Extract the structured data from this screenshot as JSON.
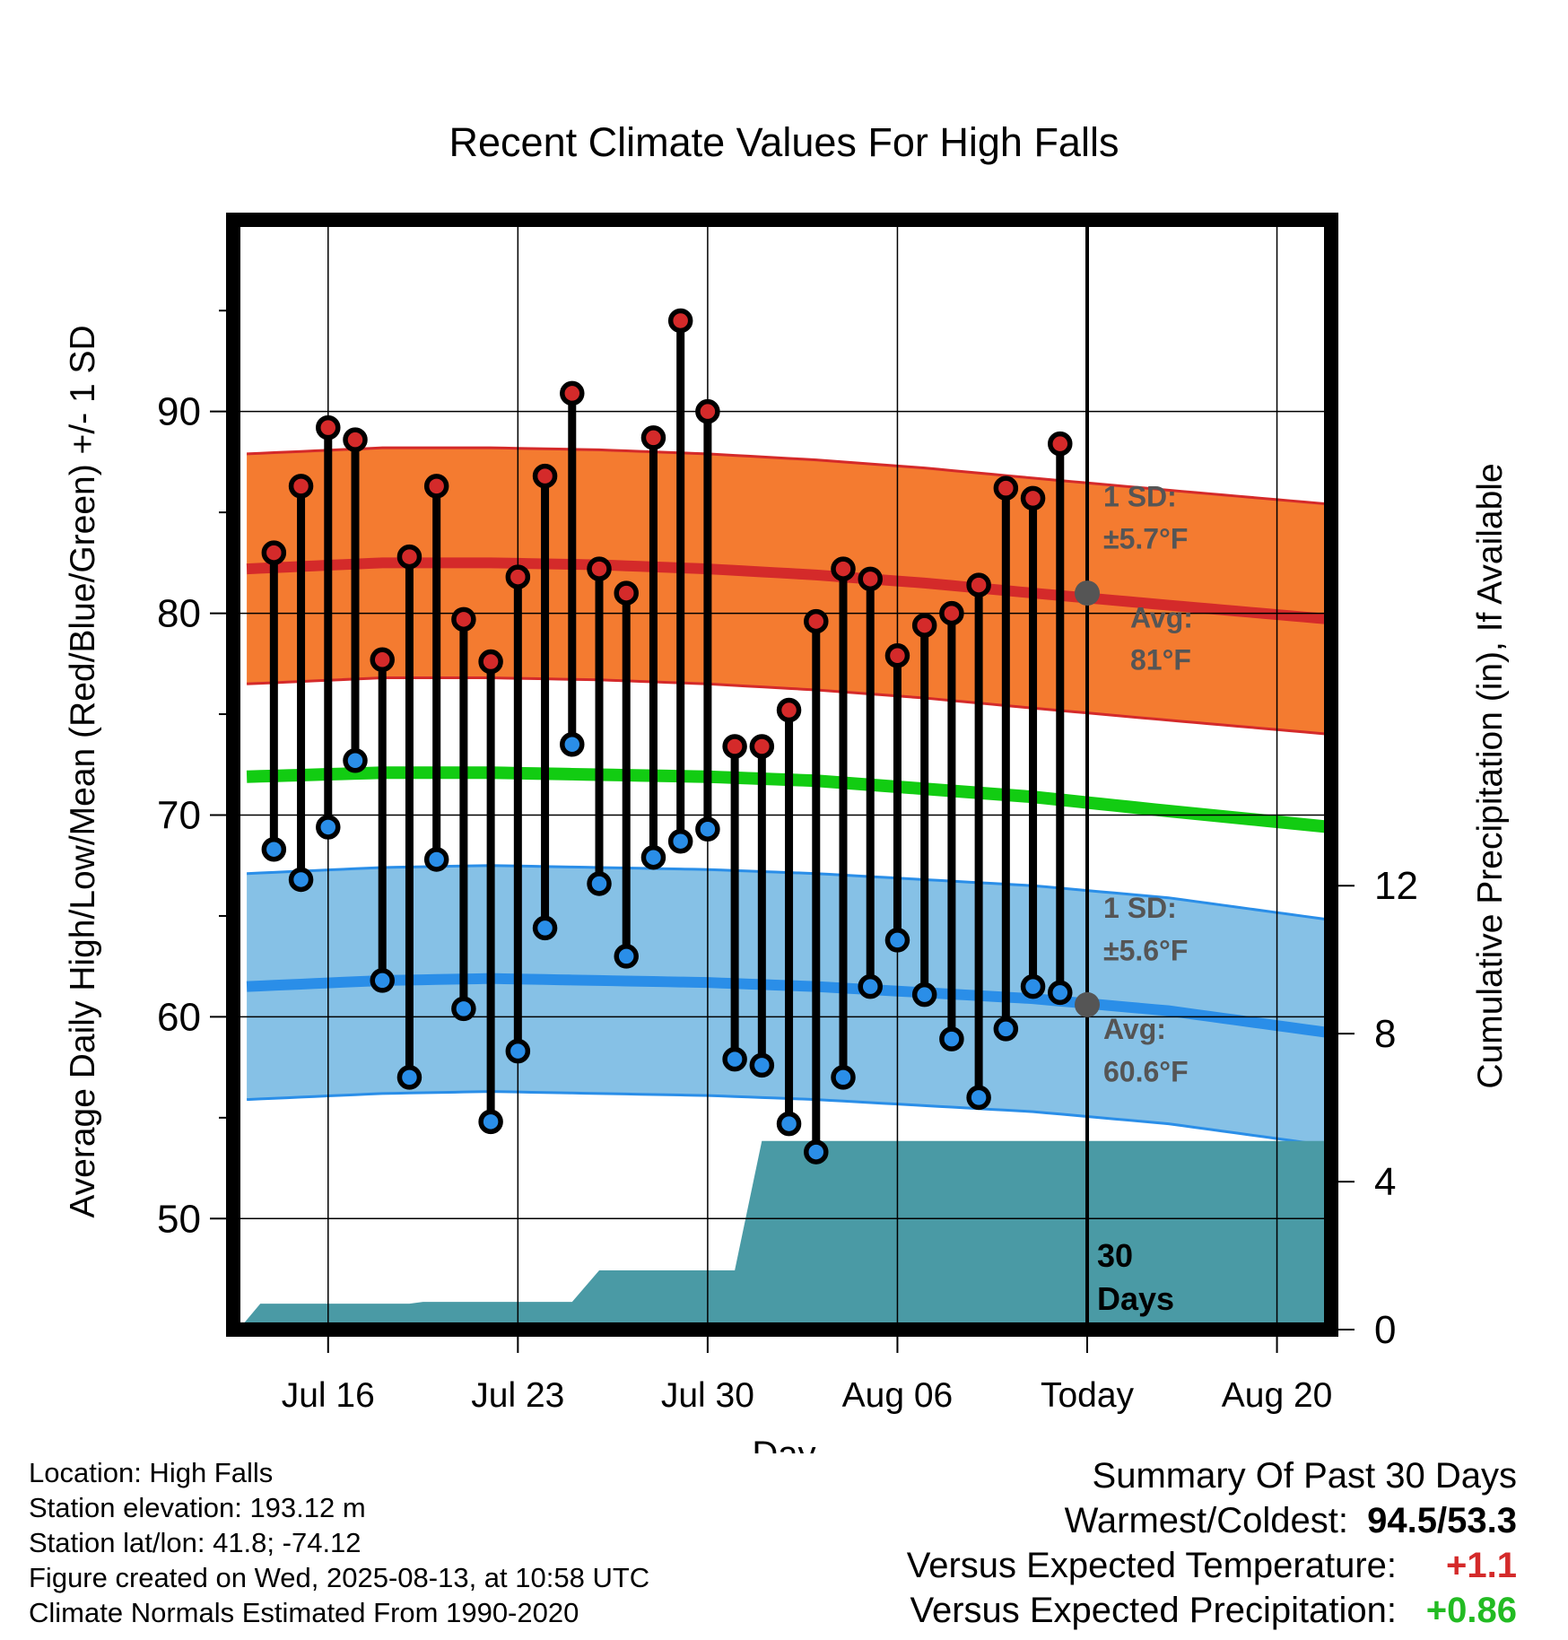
{
  "chart_data": {
    "type": "line",
    "title": "Recent Climate Values For High Falls",
    "xlabel": "Day",
    "ylabel_left": "Average Daily High/Low/Mean (Red/Blue/Green) +/- 1 SD",
    "ylabel_right": "Cumulative Precipitation (in), If Available",
    "x_ticks": [
      "Jul 16",
      "Jul 23",
      "Jul 30",
      "Aug 06",
      "Today",
      "Aug 20"
    ],
    "x_tick_days": [
      2,
      9,
      16,
      23,
      30,
      37
    ],
    "xlim_days": [
      -1.5,
      39
    ],
    "ylim_temp": [
      44.5,
      99.5
    ],
    "y_ticks_temp": [
      50,
      60,
      70,
      80,
      90
    ],
    "y_minor_step": 5,
    "ylim_precip": [
      0,
      30
    ],
    "y_ticks_precip": [
      0,
      4,
      8,
      12
    ],
    "grid": true,
    "today_day": 30,
    "days_label": "30",
    "days_label_2": "Days",
    "normals": {
      "high_avg": [
        82.2,
        82.5,
        82.5,
        82.4,
        82.2,
        81.9,
        81.5,
        81.0,
        80.4,
        79.7
      ],
      "high_sd": 5.7,
      "low_avg": [
        61.5,
        61.8,
        61.9,
        61.8,
        61.7,
        61.5,
        61.2,
        60.9,
        60.3,
        59.2
      ],
      "low_sd": 5.6,
      "mean_avg": [
        71.9,
        72.1,
        72.1,
        72.0,
        71.9,
        71.7,
        71.3,
        70.9,
        70.2,
        69.4
      ],
      "normal_days": [
        -1,
        4,
        8,
        12,
        16,
        20,
        24,
        28,
        33,
        39
      ]
    },
    "high_label": {
      "sd_title": "1 SD:",
      "sd_value": "±5.7°F",
      "avg_title": "Avg:",
      "avg_value": "81°F",
      "avg": 81
    },
    "low_label": {
      "sd_title": "1 SD:",
      "sd_value": "±5.6°F",
      "avg_title": "Avg:",
      "avg_value": "60.6°F",
      "avg": 60.6
    },
    "series": [
      {
        "name": "High",
        "color": "#d42a2a",
        "days": [
          0,
          1,
          2,
          3,
          4,
          5,
          6,
          7,
          8,
          9,
          10,
          11,
          12,
          13,
          14,
          15,
          16,
          17,
          18,
          19,
          20,
          21,
          22,
          23,
          24,
          25,
          26,
          27,
          28,
          29
        ],
        "values": [
          83.0,
          86.3,
          89.2,
          88.6,
          77.7,
          82.8,
          86.3,
          79.7,
          77.6,
          81.8,
          86.8,
          90.9,
          82.2,
          81.0,
          88.7,
          94.5,
          90.0,
          73.4,
          73.4,
          75.2,
          79.6,
          82.2,
          81.7,
          77.9,
          79.4,
          80.0,
          81.4,
          86.2,
          85.7,
          88.4
        ]
      },
      {
        "name": "Low",
        "color": "#2a8ee8",
        "days": [
          0,
          1,
          2,
          3,
          4,
          5,
          6,
          7,
          8,
          9,
          10,
          11,
          12,
          13,
          14,
          15,
          16,
          17,
          18,
          19,
          20,
          21,
          22,
          23,
          24,
          25,
          26,
          27,
          28,
          29
        ],
        "values": [
          68.3,
          66.8,
          69.4,
          72.7,
          61.8,
          57.0,
          67.8,
          60.4,
          54.8,
          58.3,
          64.4,
          73.5,
          66.6,
          63.0,
          67.9,
          68.7,
          69.3,
          57.9,
          57.6,
          54.7,
          53.3,
          57.0,
          61.5,
          63.8,
          61.1,
          58.9,
          56.0,
          59.4,
          61.5,
          61.2
        ]
      }
    ],
    "precip": {
      "name": "Cumulative Precipitation",
      "color": "#4a9aa5",
      "days": [
        -1.3,
        -0.5,
        5.0,
        5.5,
        11.0,
        12.0,
        17.0,
        18.0,
        39
      ],
      "values": [
        0,
        0.7,
        0.7,
        0.75,
        0.75,
        1.6,
        1.6,
        5.1,
        5.1
      ]
    },
    "colors": {
      "high_band": "#f47b30",
      "high_line": "#d42a2a",
      "low_band": "#86c1e6",
      "low_line": "#2a8ee8",
      "mean_line": "#12cc12",
      "precip": "#4a9aa5",
      "avg_dot": "#555555",
      "label": "#555555"
    }
  },
  "footer": {
    "location": "Location: High Falls",
    "elevation": "Station elevation: 193.12 m",
    "latlon": "Station lat/lon: 41.8; -74.12",
    "created": "Figure created on Wed, 2025-08-13, at 10:58 UTC",
    "normals": "Climate Normals Estimated From 1990-2020"
  },
  "summary": {
    "title": "Summary Of Past 30 Days",
    "warmest_label": "Warmest/Coldest:",
    "warmest_value": "94.5/53.3",
    "temp_label": "Versus Expected Temperature:",
    "temp_value": "+1.1",
    "temp_color": "#d42a2a",
    "precip_label": "Versus Expected Precipitation:",
    "precip_value": "+0.86",
    "precip_color": "#22bb22"
  }
}
